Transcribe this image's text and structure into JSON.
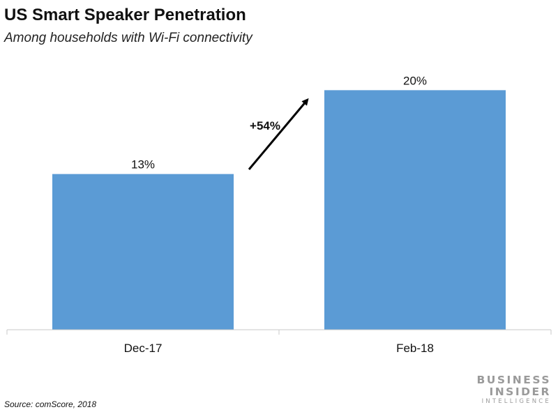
{
  "header": {
    "title": "US Smart Speaker Penetration",
    "subtitle": "Among households with Wi-Fi connectivity"
  },
  "chart_data": {
    "type": "bar",
    "categories": [
      "Dec-17",
      "Feb-18"
    ],
    "values": [
      13,
      20
    ],
    "value_labels": [
      "13%",
      "20%"
    ],
    "title": "US Smart Speaker Penetration",
    "subtitle": "Among households with Wi-Fi connectivity",
    "xlabel": "",
    "ylabel": "",
    "ylim": [
      0,
      22
    ],
    "grid": false,
    "bar_color": "#5b9bd5",
    "annotations": [
      {
        "text": "+54%",
        "type": "arrow",
        "from": "Dec-17",
        "to": "Feb-18"
      }
    ]
  },
  "footer": {
    "source": "Source: comScore, 2018",
    "logo_lines": [
      "BUSINESS",
      "INSIDER",
      "INTELLIGENCE"
    ]
  }
}
